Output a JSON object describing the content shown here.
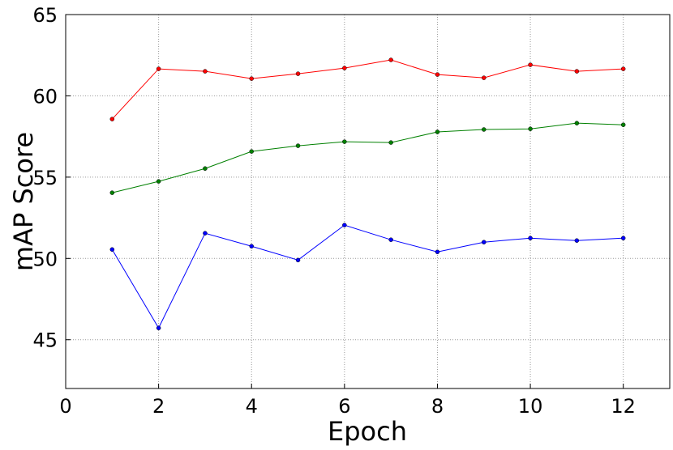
{
  "chart_data": {
    "type": "line",
    "xlabel": "Epoch",
    "ylabel": "mAP Score",
    "x": [
      1,
      2,
      3,
      4,
      5,
      6,
      7,
      8,
      9,
      10,
      11,
      12
    ],
    "series": [
      {
        "color": "#ff0000",
        "values": [
          58.57,
          61.66,
          61.51,
          61.06,
          61.36,
          61.71,
          62.21,
          61.31,
          61.11,
          61.91,
          61.51,
          61.66
        ]
      },
      {
        "color": "#008000",
        "values": [
          54.04,
          54.74,
          55.53,
          56.58,
          56.93,
          57.18,
          57.13,
          57.78,
          57.93,
          57.97,
          58.32,
          58.22
        ]
      },
      {
        "color": "#0000ff",
        "values": [
          50.55,
          45.72,
          51.55,
          50.75,
          49.9,
          52.05,
          51.15,
          50.4,
          51.0,
          51.25,
          51.1,
          51.25
        ]
      }
    ],
    "xlim": [
      0,
      13
    ],
    "xticks": [
      0,
      2,
      4,
      6,
      8,
      10,
      12
    ],
    "ylim": [
      42,
      65
    ],
    "yticks": [
      45,
      50,
      55,
      60,
      65
    ],
    "grid": true
  }
}
